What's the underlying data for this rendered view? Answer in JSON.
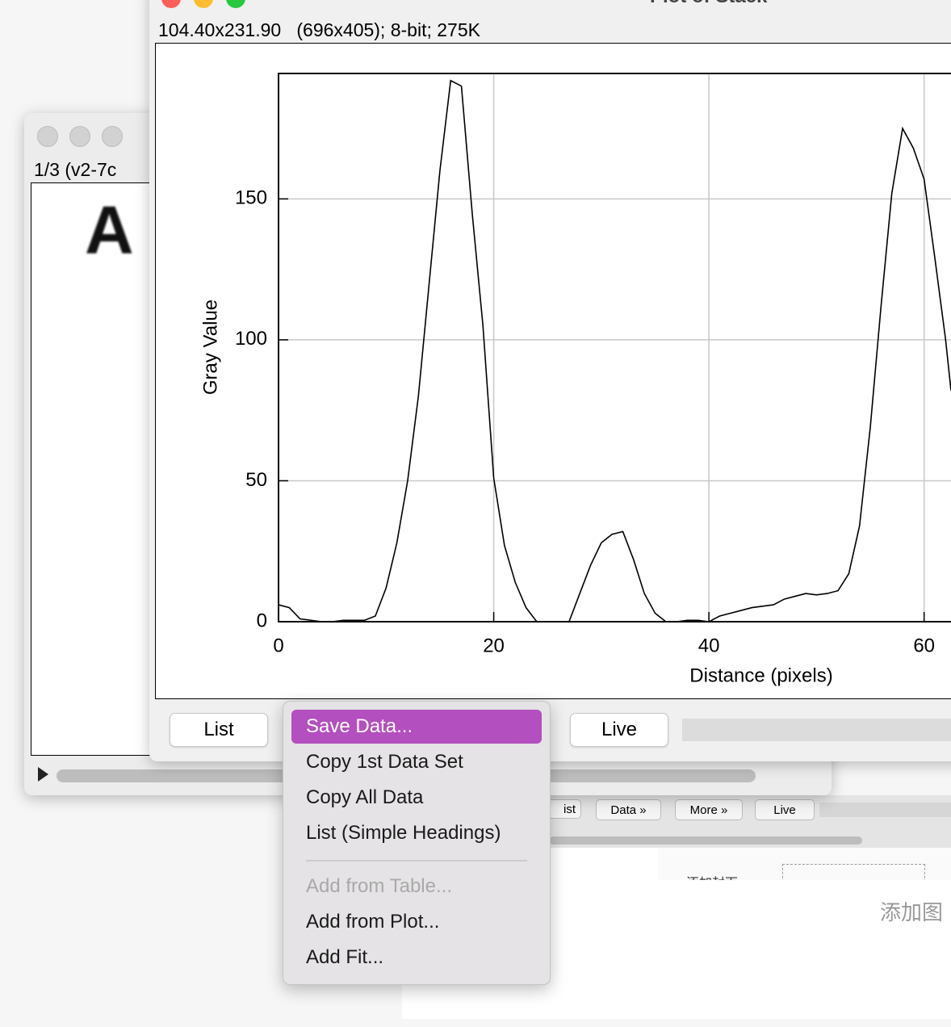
{
  "image_window": {
    "title_info": "1/3 (v2-7c",
    "image_letter": "A"
  },
  "plot_window": {
    "title": "Plot of Stack",
    "info": "104.40x231.90   (696x405); 8-bit; 275K",
    "buttons": [
      "List",
      "Live"
    ]
  },
  "background_window": {
    "buttons": [
      "ist",
      "Data »",
      "More »",
      "Live"
    ],
    "labels": [
      "添加封面",
      "添加图"
    ]
  },
  "menu": {
    "groups": [
      [
        {
          "label": "Save Data...",
          "state": "selected"
        },
        {
          "label": "Copy 1st Data Set",
          "state": "normal"
        },
        {
          "label": "Copy All Data",
          "state": "normal"
        },
        {
          "label": "List (Simple Headings)",
          "state": "normal"
        }
      ],
      [
        {
          "label": "Add from Table...",
          "state": "disabled"
        },
        {
          "label": "Add from Plot...",
          "state": "normal"
        },
        {
          "label": "Add Fit...",
          "state": "normal"
        }
      ]
    ]
  },
  "chart_data": {
    "type": "line",
    "xlabel": "Distance (pixels)",
    "ylabel": "Gray Value",
    "x": [
      0,
      1,
      2,
      3,
      4,
      5,
      6,
      7,
      8,
      9,
      10,
      11,
      12,
      13,
      14,
      15,
      16,
      17,
      18,
      19,
      20,
      21,
      22,
      23,
      24,
      25,
      26,
      27,
      28,
      29,
      30,
      31,
      32,
      33,
      34,
      35,
      36,
      37,
      38,
      39,
      40,
      41,
      42,
      43,
      44,
      45,
      46,
      47,
      48,
      49,
      50,
      51,
      52,
      53,
      54,
      55,
      56,
      57,
      58,
      59,
      60,
      61,
      62,
      62.5
    ],
    "series": [
      {
        "name": "Gray Value",
        "color": "#000000",
        "values": [
          6,
          5,
          1,
          0.5,
          0,
          0,
          0.5,
          0.5,
          0.5,
          2,
          12,
          28,
          50,
          80,
          120,
          160,
          192,
          190,
          145,
          105,
          51,
          27,
          14,
          5,
          0,
          0,
          0,
          0,
          10,
          20,
          28,
          31,
          32,
          22,
          10,
          3,
          0,
          0,
          0.5,
          0.5,
          0,
          2,
          3,
          4,
          5,
          5.5,
          6,
          8,
          9,
          10,
          9.5,
          10,
          11,
          17,
          34,
          69,
          112,
          152,
          175,
          168,
          157,
          129,
          100,
          82
        ]
      }
    ],
    "xlim": [
      0,
      62.5
    ],
    "ylim": [
      0,
      194.5
    ],
    "xticks": [
      0,
      20,
      40,
      60
    ],
    "yticks": [
      0,
      50,
      100,
      150
    ],
    "grid": true
  }
}
